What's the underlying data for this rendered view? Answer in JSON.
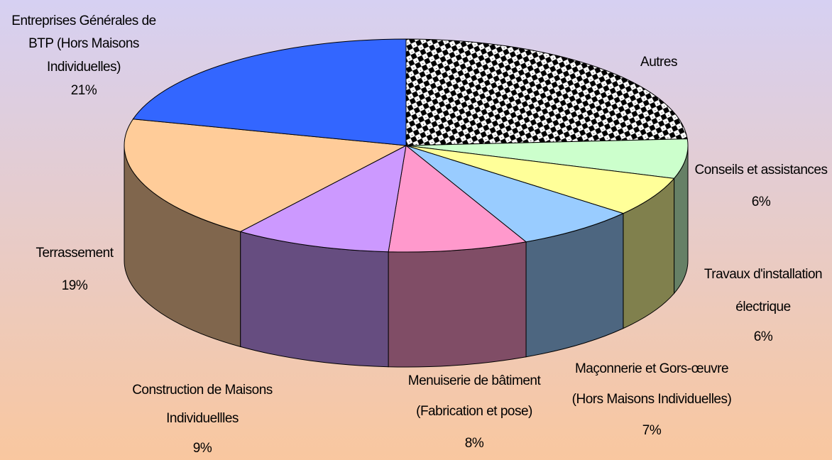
{
  "chart_data": {
    "type": "pie3d",
    "categories": [
      [
        "Autres"
      ],
      [
        "Conseils et assistances"
      ],
      [
        "Travaux d'installation",
        "électrique"
      ],
      [
        "Maçonnerie et Gors-œuvre",
        "(Hors Maisons Individuelles)"
      ],
      [
        "Menuiserie de bâtiment",
        "(Fabrication et pose)"
      ],
      [
        "Construction de Maisons",
        "Individuellles"
      ],
      [
        "Terrassement"
      ],
      [
        "Entreprises Générales de",
        "BTP (Hors Maisons",
        "Individuelles)"
      ]
    ],
    "values": [
      24,
      6,
      6,
      7,
      8,
      9,
      19,
      21
    ],
    "value_labels": [
      null,
      "6%",
      "6%",
      "7%",
      "8%",
      "9%",
      "19%",
      "21%"
    ],
    "colors": [
      "#ffffff",
      "#ccffcc",
      "#ffff99",
      "#99ccff",
      "#ff99cc",
      "#cc99ff",
      "#ffcc99",
      "#3366ff"
    ],
    "patterned_slices": [
      0
    ]
  }
}
